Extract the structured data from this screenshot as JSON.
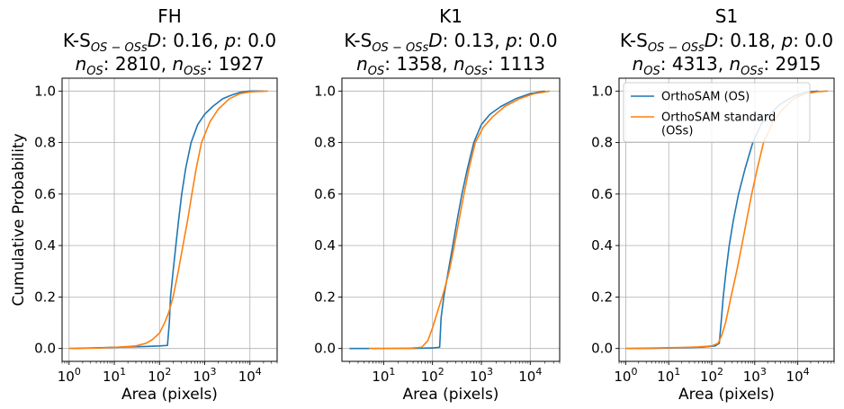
{
  "chart_data": [
    {
      "type": "line",
      "panel": "FH",
      "title_lines": [
        "FH",
        "K-S{OS − OSs}D: 0.16, p: 0.0",
        "n{OS}: 2810, n{OSs}: 1927"
      ],
      "title": {
        "name": "FH",
        "ks_d": "0.16",
        "p": "0.0",
        "n_os": "2810",
        "n_oss": "1927"
      },
      "xlabel": "Area (pixels)",
      "ylabel": "Cumulative Probability",
      "xscale": "log",
      "xlim": [
        0.7,
        40000
      ],
      "ylim": [
        -0.05,
        1.05
      ],
      "xticks": [
        1,
        10,
        100,
        1000,
        10000
      ],
      "xtick_labels": [
        "10^0",
        "10^1",
        "10^2",
        "10^3",
        "10^4"
      ],
      "yticks": [
        0,
        0.2,
        0.4,
        0.6,
        0.8,
        1.0
      ],
      "ytick_labels": [
        "0.0",
        "0.2",
        "0.4",
        "0.6",
        "0.8",
        "1.0"
      ],
      "grid": true,
      "series": [
        {
          "name": "OrthoSAM (OS)",
          "color": "#1f77b4",
          "points": [
            [
              1,
              0.0
            ],
            [
              5,
              0.003
            ],
            [
              20,
              0.006
            ],
            [
              50,
              0.008
            ],
            [
              100,
              0.01
            ],
            [
              150,
              0.012
            ],
            [
              165,
              0.1
            ],
            [
              175,
              0.2
            ],
            [
              200,
              0.3
            ],
            [
              230,
              0.4
            ],
            [
              265,
              0.5
            ],
            [
              310,
              0.6
            ],
            [
              380,
              0.7
            ],
            [
              500,
              0.8
            ],
            [
              700,
              0.87
            ],
            [
              1000,
              0.91
            ],
            [
              1500,
              0.94
            ],
            [
              2500,
              0.97
            ],
            [
              4000,
              0.985
            ],
            [
              6000,
              0.995
            ],
            [
              10000,
              1.0
            ],
            [
              20000,
              1.0
            ]
          ]
        },
        {
          "name": "OrthoSAM standard (OSs)",
          "color": "#ff7f0e",
          "points": [
            [
              1,
              0.0
            ],
            [
              5,
              0.002
            ],
            [
              15,
              0.006
            ],
            [
              30,
              0.01
            ],
            [
              50,
              0.02
            ],
            [
              70,
              0.035
            ],
            [
              100,
              0.06
            ],
            [
              130,
              0.1
            ],
            [
              160,
              0.14
            ],
            [
              200,
              0.2
            ],
            [
              260,
              0.3
            ],
            [
              330,
              0.4
            ],
            [
              420,
              0.5
            ],
            [
              520,
              0.6
            ],
            [
              650,
              0.7
            ],
            [
              850,
              0.8
            ],
            [
              1300,
              0.88
            ],
            [
              2000,
              0.93
            ],
            [
              3500,
              0.97
            ],
            [
              6000,
              0.99
            ],
            [
              10000,
              0.997
            ],
            [
              25000,
              1.0
            ]
          ]
        }
      ]
    },
    {
      "type": "line",
      "panel": "K1",
      "title_lines": [
        "K1",
        "K-S{OS − OSs}D: 0.13, p: 0.0",
        "n{OS}: 1358, n{OSs}: 1113"
      ],
      "title": {
        "name": "K1",
        "ks_d": "0.13",
        "p": "0.0",
        "n_os": "1358",
        "n_oss": "1113"
      },
      "xlabel": "Area (pixels)",
      "ylabel": "",
      "xscale": "log",
      "xlim": [
        1.4,
        40000
      ],
      "ylim": [
        -0.05,
        1.05
      ],
      "xticks": [
        10,
        100,
        1000,
        10000
      ],
      "xtick_labels": [
        "10^1",
        "10^2",
        "10^3",
        "10^4"
      ],
      "yticks": [
        0,
        0.2,
        0.4,
        0.6,
        0.8,
        1.0
      ],
      "ytick_labels": [
        "0.0",
        "0.2",
        "0.4",
        "0.6",
        "0.8",
        "1.0"
      ],
      "grid": true,
      "series": [
        {
          "name": "OrthoSAM (OS)",
          "color": "#1f77b4",
          "points": [
            [
              2,
              0.0
            ],
            [
              10,
              0.0
            ],
            [
              50,
              0.001
            ],
            [
              100,
              0.002
            ],
            [
              140,
              0.005
            ],
            [
              150,
              0.12
            ],
            [
              170,
              0.2
            ],
            [
              210,
              0.3
            ],
            [
              260,
              0.4
            ],
            [
              320,
              0.5
            ],
            [
              400,
              0.6
            ],
            [
              520,
              0.7
            ],
            [
              700,
              0.8
            ],
            [
              1000,
              0.87
            ],
            [
              1500,
              0.91
            ],
            [
              2500,
              0.94
            ],
            [
              5000,
              0.97
            ],
            [
              10000,
              0.99
            ],
            [
              20000,
              1.0
            ]
          ]
        },
        {
          "name": "OrthoSAM standard (OSs)",
          "color": "#ff7f0e",
          "points": [
            [
              5,
              0.0
            ],
            [
              30,
              0.0
            ],
            [
              60,
              0.005
            ],
            [
              80,
              0.03
            ],
            [
              100,
              0.08
            ],
            [
              130,
              0.15
            ],
            [
              170,
              0.22
            ],
            [
              220,
              0.3
            ],
            [
              280,
              0.4
            ],
            [
              350,
              0.5
            ],
            [
              440,
              0.6
            ],
            [
              560,
              0.7
            ],
            [
              750,
              0.8
            ],
            [
              1100,
              0.86
            ],
            [
              1700,
              0.9
            ],
            [
              3000,
              0.94
            ],
            [
              6000,
              0.97
            ],
            [
              12000,
              0.99
            ],
            [
              25000,
              1.0
            ]
          ]
        }
      ]
    },
    {
      "type": "line",
      "panel": "S1",
      "title_lines": [
        "S1",
        "K-S{OS − OSs}D: 0.18, p: 0.0",
        "n{OS}: 4313, n{OSs}: 2915"
      ],
      "title": {
        "name": "S1",
        "ks_d": "0.18",
        "p": "0.0",
        "n_os": "4313",
        "n_oss": "2915"
      },
      "xlabel": "Area (pixels)",
      "ylabel": "",
      "xscale": "log",
      "xlim": [
        0.7,
        70000
      ],
      "ylim": [
        -0.05,
        1.05
      ],
      "xticks": [
        1,
        10,
        100,
        1000,
        10000
      ],
      "xtick_labels": [
        "10^0",
        "10^1",
        "10^2",
        "10^3",
        "10^4"
      ],
      "yticks": [
        0,
        0.2,
        0.4,
        0.6,
        0.8,
        1.0
      ],
      "ytick_labels": [
        "0.0",
        "0.2",
        "0.4",
        "0.6",
        "0.8",
        "1.0"
      ],
      "grid": true,
      "legend": {
        "placement": "top-left",
        "entries": [
          "OrthoSAM (OS)",
          "OrthoSAM standard\n(OSs)"
        ]
      },
      "series": [
        {
          "name": "OrthoSAM (OS)",
          "color": "#1f77b4",
          "points": [
            [
              1,
              0.0
            ],
            [
              5,
              0.001
            ],
            [
              20,
              0.003
            ],
            [
              60,
              0.005
            ],
            [
              120,
              0.01
            ],
            [
              150,
              0.02
            ],
            [
              165,
              0.1
            ],
            [
              185,
              0.2
            ],
            [
              215,
              0.3
            ],
            [
              255,
              0.4
            ],
            [
              320,
              0.5
            ],
            [
              420,
              0.6
            ],
            [
              600,
              0.7
            ],
            [
              900,
              0.8
            ],
            [
              1400,
              0.87
            ],
            [
              2200,
              0.91
            ],
            [
              4000,
              0.95
            ],
            [
              8000,
              0.98
            ],
            [
              15000,
              0.995
            ],
            [
              30000,
              1.0
            ]
          ]
        },
        {
          "name": "OrthoSAM standard (OSs)",
          "color": "#ff7f0e",
          "points": [
            [
              1,
              0.0
            ],
            [
              5,
              0.002
            ],
            [
              20,
              0.004
            ],
            [
              50,
              0.006
            ],
            [
              100,
              0.01
            ],
            [
              140,
              0.02
            ],
            [
              170,
              0.05
            ],
            [
              210,
              0.1
            ],
            [
              280,
              0.2
            ],
            [
              380,
              0.3
            ],
            [
              500,
              0.4
            ],
            [
              650,
              0.5
            ],
            [
              850,
              0.6
            ],
            [
              1150,
              0.7
            ],
            [
              1600,
              0.8
            ],
            [
              2500,
              0.87
            ],
            [
              4000,
              0.92
            ],
            [
              8000,
              0.97
            ],
            [
              15000,
              0.99
            ],
            [
              30000,
              0.998
            ],
            [
              50000,
              1.0
            ]
          ]
        }
      ]
    }
  ]
}
